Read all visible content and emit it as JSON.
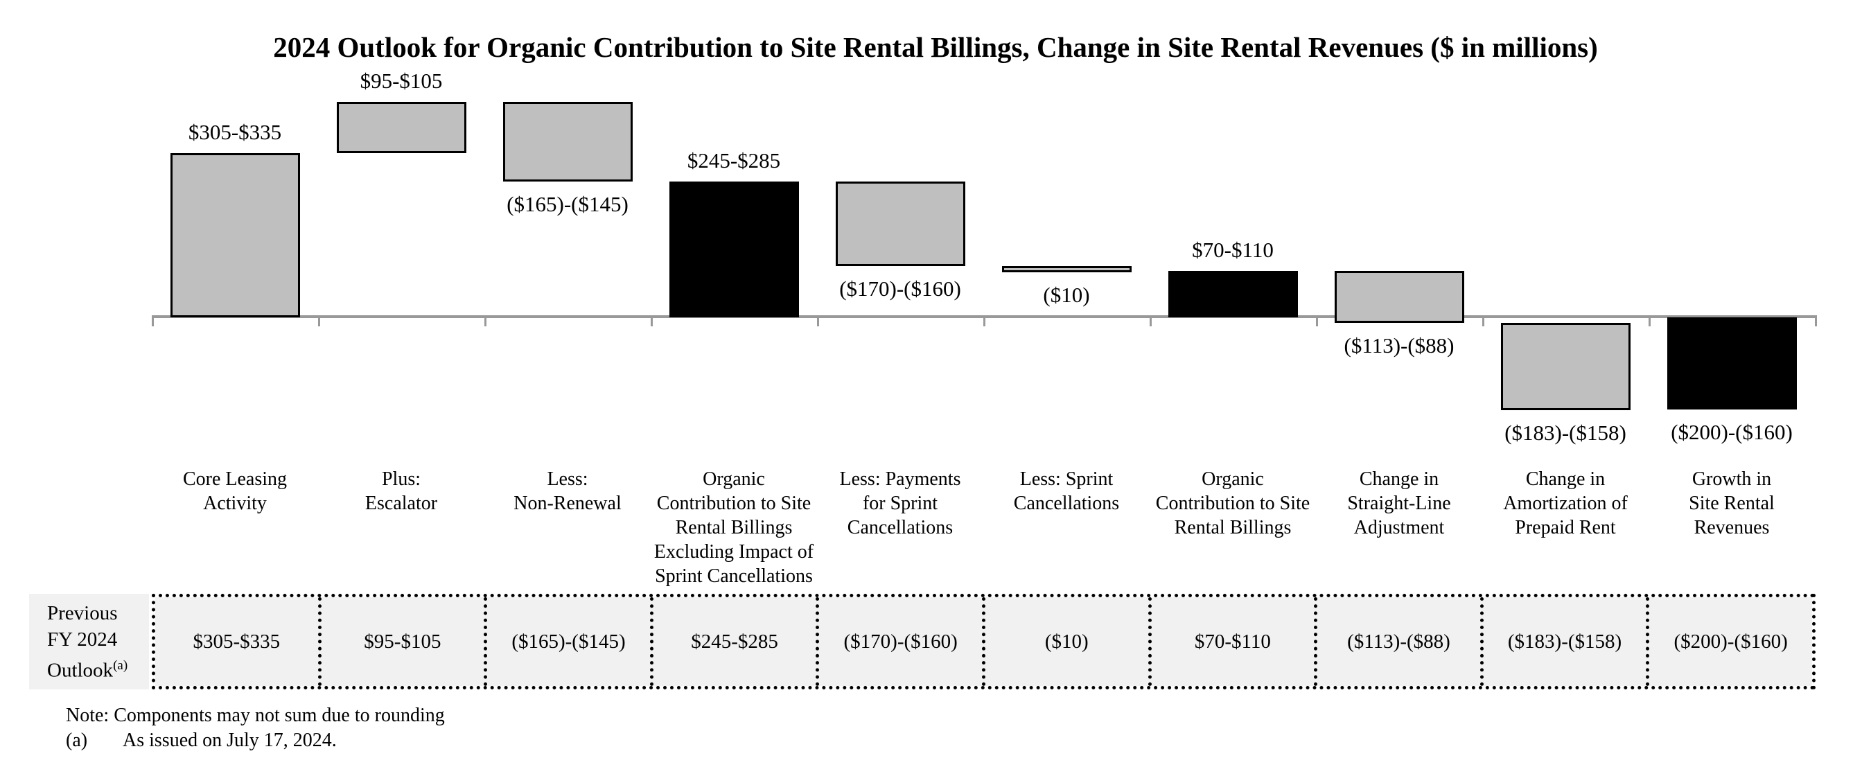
{
  "title": "2024 Outlook for Organic Contribution to Site Rental Billings, Change in Site Rental Revenues ($ in millions)",
  "chart_data": {
    "type": "bar",
    "subtype": "waterfall",
    "units": "$ in millions",
    "baseline_value": 0,
    "value_axis_range": [
      -200,
      440
    ],
    "grid": false,
    "legend": false,
    "bars": [
      {
        "category": "Core Leasing\nActivity",
        "value_label": "$305-$335",
        "range": [
          305,
          335
        ],
        "start": 0,
        "end": 320,
        "color": "gray",
        "label_position": "above",
        "table_value": "$305-$335"
      },
      {
        "category": "Plus:\nEscalator",
        "value_label": "$95-$105",
        "range": [
          95,
          105
        ],
        "start": 320,
        "end": 420,
        "color": "gray",
        "label_position": "above",
        "table_value": "$95-$105"
      },
      {
        "category": "Less:\nNon-Renewal",
        "value_label": "($165)-($145)",
        "range": [
          -165,
          -145
        ],
        "start": 420,
        "end": 265,
        "color": "gray",
        "label_position": "below",
        "table_value": "($165)-($145)"
      },
      {
        "category": "Organic\nContribution to Site\nRental Billings\nExcluding Impact of\nSprint Cancellations",
        "value_label": "$245-$285",
        "range": [
          245,
          285
        ],
        "start": 0,
        "end": 265,
        "color": "black",
        "label_position": "above",
        "table_value": "$245-$285"
      },
      {
        "category": "Less: Payments\nfor Sprint\nCancellations",
        "value_label": "($170)-($160)",
        "range": [
          -170,
          -160
        ],
        "start": 265,
        "end": 100,
        "color": "gray",
        "label_position": "below",
        "table_value": "($170)-($160)"
      },
      {
        "category": "Less: Sprint\nCancellations",
        "value_label": "($10)",
        "range": [
          -10,
          -10
        ],
        "start": 100,
        "end": 90,
        "color": "gray",
        "label_position": "below",
        "table_value": "($10)"
      },
      {
        "category": "Organic\nContribution to Site\nRental Billings",
        "value_label": "$70-$110",
        "range": [
          70,
          110
        ],
        "start": 0,
        "end": 90,
        "color": "black",
        "label_position": "above",
        "table_value": "$70-$110"
      },
      {
        "category": "Change in\nStraight-Line\nAdjustment",
        "value_label": "($113)-($88)",
        "range": [
          -113,
          -88
        ],
        "start": 90,
        "end": -10.5,
        "color": "gray",
        "label_position": "below",
        "table_value": "($113)-($88)"
      },
      {
        "category": "Change in\nAmortization of\nPrepaid Rent",
        "value_label": "($183)-($158)",
        "range": [
          -183,
          -158
        ],
        "start": -10.5,
        "end": -181,
        "color": "gray",
        "label_position": "below",
        "table_value": "($183)-($158)"
      },
      {
        "category": "Growth in\nSite Rental\nRevenues",
        "value_label": "($200)-($160)",
        "range": [
          -200,
          -160
        ],
        "start": 0,
        "end": -180,
        "color": "black",
        "label_position": "below",
        "table_value": "($200)-($160)"
      }
    ]
  },
  "table": {
    "row_header": {
      "line1": "Previous",
      "line2": "FY 2024",
      "line3": "Outlook",
      "superscript": "(a)"
    }
  },
  "notes": {
    "note": "Note: Components may not sum due to rounding",
    "footnote_marker": "(a)",
    "footnote_text": "As issued on July 17, 2024."
  },
  "colors": {
    "bar_gray": "#BFBFBF",
    "bar_black": "#000000",
    "bar_border": "#000000",
    "axis_gray": "#999999",
    "table_background": "#F1F1F1",
    "text": "#000000",
    "page_background": "#FFFFFF"
  }
}
